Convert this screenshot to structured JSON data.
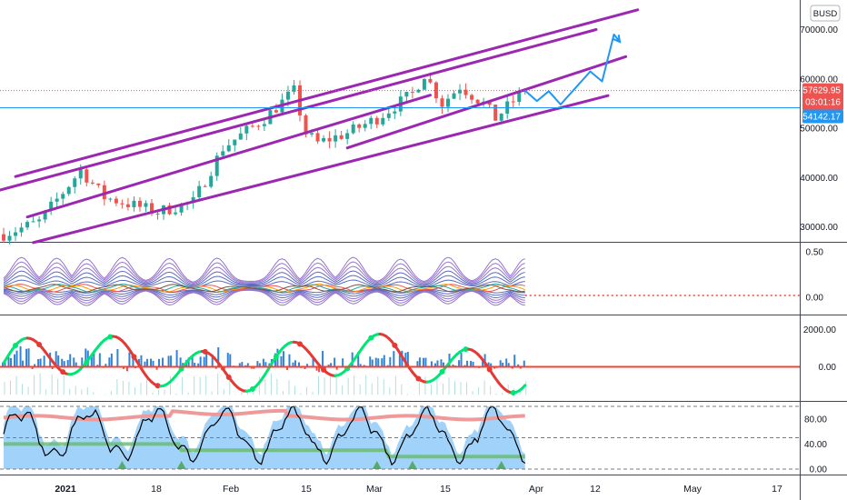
{
  "symbol_badge": "BUSD",
  "colors": {
    "up": "#26a69a",
    "down": "#ef5350",
    "channel": "#9c27b0",
    "projection": "#2196f3",
    "support_line": "#2196f3",
    "price_tag": "#ef5350",
    "support_tag": "#2196f3"
  },
  "price_tag": {
    "value": "57629.95",
    "countdown": "03:01:16"
  },
  "support_tag": {
    "value": "54142.17"
  },
  "chart_data": [
    {
      "type": "candlestick",
      "pane": "price",
      "y_ticks": [
        "70000.00",
        "60000.00",
        "50000.00",
        "40000.00",
        "30000.00"
      ],
      "ylim": [
        26500,
        75000
      ],
      "x_ticks": [
        "2021",
        "18",
        "Feb",
        "15",
        "Mar",
        "15",
        "Apr",
        "12",
        "May",
        "17"
      ],
      "anchors": [
        [
          0,
          28500
        ],
        [
          6,
          31000
        ],
        [
          13,
          41500
        ],
        [
          17,
          36000
        ],
        [
          20,
          35000
        ],
        [
          26,
          33000
        ],
        [
          32,
          35000
        ],
        [
          37,
          46000
        ],
        [
          44,
          52000
        ],
        [
          49,
          57500
        ],
        [
          51,
          49000
        ],
        [
          53,
          47000
        ],
        [
          58,
          49000
        ],
        [
          63,
          52000
        ],
        [
          69,
          57000
        ],
        [
          71,
          61000
        ],
        [
          74,
          55000
        ],
        [
          77,
          58500
        ],
        [
          81,
          55000
        ],
        [
          83,
          52000
        ],
        [
          86,
          55500
        ],
        [
          88,
          57630
        ]
      ],
      "projection": [
        [
          88,
          57630
        ],
        [
          90,
          55500
        ],
        [
          92,
          57500
        ],
        [
          94,
          54800
        ],
        [
          99,
          61500
        ],
        [
          101,
          59500
        ],
        [
          103,
          69000
        ],
        [
          104,
          67500
        ]
      ],
      "channel_lines": [
        [
          [
            2,
            40200
          ],
          [
            107,
            74000
          ]
        ],
        [
          [
            -2,
            37000
          ],
          [
            100,
            70000
          ]
        ],
        [
          [
            4,
            32000
          ],
          [
            72,
            56700
          ]
        ],
        [
          [
            5,
            26800
          ],
          [
            102,
            56600
          ]
        ],
        [
          [
            58,
            46000
          ],
          [
            105,
            64500
          ]
        ]
      ],
      "support_level": 54142.17,
      "current_price": 57629.95
    },
    {
      "type": "line",
      "pane": "oscillator_1",
      "y_ticks": [
        "0.50",
        "0.00"
      ],
      "ylim": [
        -0.1,
        0.6
      ],
      "reference": 0.02
    },
    {
      "type": "histogram",
      "pane": "oscillator_2",
      "y_ticks": [
        "2000.00",
        "0.00"
      ],
      "ylim": [
        -1600,
        2500
      ],
      "reference": 0
    },
    {
      "type": "area",
      "pane": "oscillator_3",
      "y_ticks": [
        "80.00",
        "40.00",
        "0.00"
      ],
      "ylim": [
        -5,
        115
      ],
      "levels": [
        100,
        50,
        0
      ]
    }
  ]
}
